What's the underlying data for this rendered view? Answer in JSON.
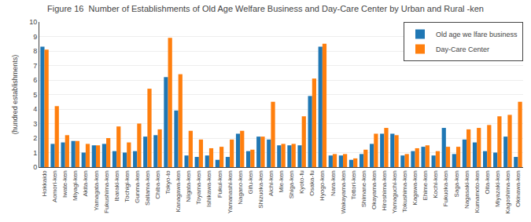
{
  "chart_data": {
    "type": "bar",
    "title": "Figure 16  Number of Establishments of Old Age Welfare Business and Day-Care Center by Urban and Rural -ken",
    "ylabel": "(hundred establishments)",
    "categories": [
      "Hokkaido",
      "Aomori-ken",
      "Iwate-ken",
      "Miyagi-ken",
      "Akita-ken",
      "Yamagata-ken",
      "Fukushima-ken",
      "Ibaraki-ken",
      "Tochigi-ken",
      "Gunma-ken",
      "Saitama-ken",
      "Chiba-ken",
      "Tokyo-to",
      "Kanagawa-ken",
      "Niigata-ken",
      "Toyama-ken",
      "Ishikawa-ken",
      "Fukui-ken",
      "Yamanashi-ken",
      "Nagano-ken",
      "Gifu-ken",
      "Shizuoka-ken",
      "Aichi-ken",
      "Mie-ken",
      "Shiga-ken",
      "Kyoto-fu",
      "Osaka-fu",
      "Hyogo-ken",
      "Nara-ken",
      "Wakayama-ken",
      "Tottori-ken",
      "Shimane-ken",
      "Okayama-ken",
      "Hiroshima-ken",
      "Yamaguchi-ken",
      "Tokushima-ken",
      "Kagawa-ken",
      "Ehime-ken",
      "Kochi-ken",
      "Fukuoka-ken",
      "Saga-ken",
      "Nagasaki-ken",
      "Kumamoto-ken",
      "Oita-ken",
      "Miyazaki-ken",
      "Kagoshima-ken",
      "Okinawa-ken"
    ],
    "series": [
      {
        "name": "Old age we lfare business",
        "values": [
          8.3,
          1.6,
          1.7,
          1.8,
          1.0,
          1.5,
          1.6,
          1.1,
          1.0,
          1.1,
          2.1,
          2.2,
          6.2,
          3.9,
          0.8,
          0.7,
          0.8,
          0.5,
          0.7,
          2.3,
          1.1,
          2.1,
          1.9,
          1.5,
          1.5,
          1.5,
          4.9,
          8.3,
          0.8,
          0.8,
          0.5,
          0.9,
          1.6,
          2.3,
          2.3,
          0.8,
          1.1,
          1.4,
          0.8,
          2.7,
          0.9,
          1.9,
          1.7,
          1.1,
          1.0,
          2.1,
          0.7
        ]
      },
      {
        "name": "Day-Care Center",
        "values": [
          8.1,
          4.2,
          2.2,
          1.8,
          1.6,
          1.5,
          2.0,
          2.8,
          1.7,
          3.0,
          5.4,
          2.6,
          8.9,
          6.4,
          2.5,
          1.9,
          1.3,
          1.4,
          1.9,
          2.5,
          1.2,
          2.1,
          4.5,
          1.6,
          1.6,
          3.5,
          6.1,
          8.5,
          0.9,
          0.9,
          0.6,
          1.2,
          2.3,
          2.7,
          2.2,
          0.9,
          1.3,
          1.5,
          1.1,
          1.4,
          1.4,
          2.6,
          2.7,
          2.9,
          3.5,
          3.6,
          4.5
        ]
      }
    ],
    "ylim": [
      0,
      10
    ],
    "yticks": [
      0,
      1,
      2,
      3,
      4,
      5,
      6,
      7,
      8,
      9,
      10
    ],
    "grid": true,
    "legend": "upper right"
  }
}
